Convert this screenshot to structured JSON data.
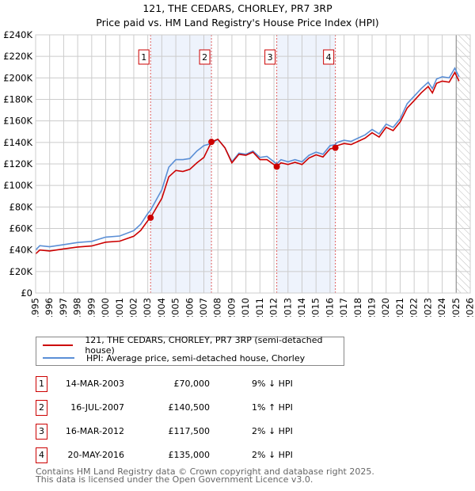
{
  "title": "121, THE CEDARS, CHORLEY, PR7 3RP",
  "subtitle": "Price paid vs. HM Land Registry's House Price Index (HPI)",
  "chart_data": {
    "type": "line",
    "title": "121, THE CEDARS, CHORLEY, PR7 3RP — Price paid vs. HM Land Registry's House Price Index (HPI)",
    "xlim": [
      1995,
      2026
    ],
    "ylim": [
      0,
      240000
    ],
    "x_ticks": [
      "1995",
      "1996",
      "1997",
      "1998",
      "1999",
      "2000",
      "2001",
      "2002",
      "2003",
      "2004",
      "2005",
      "2006",
      "2007",
      "2008",
      "2009",
      "2010",
      "2011",
      "2012",
      "2013",
      "2014",
      "2015",
      "2016",
      "2017",
      "2018",
      "2019",
      "2020",
      "2021",
      "2022",
      "2023",
      "2024",
      "2025",
      "2026"
    ],
    "y_ticks": [
      {
        "v": 0,
        "label": "£0"
      },
      {
        "v": 20000,
        "label": "£20K"
      },
      {
        "v": 40000,
        "label": "£40K"
      },
      {
        "v": 60000,
        "label": "£60K"
      },
      {
        "v": 80000,
        "label": "£80K"
      },
      {
        "v": 100000,
        "label": "£100K"
      },
      {
        "v": 120000,
        "label": "£120K"
      },
      {
        "v": 140000,
        "label": "£140K"
      },
      {
        "v": 160000,
        "label": "£160K"
      },
      {
        "v": 180000,
        "label": "£180K"
      },
      {
        "v": 200000,
        "label": "£200K"
      },
      {
        "v": 220000,
        "label": "£220K"
      },
      {
        "v": 240000,
        "label": "£240K"
      }
    ],
    "grid": true,
    "forecast_from": 2025,
    "series": [
      {
        "name": "121, THE CEDARS, CHORLEY, PR7 3RP (semi-detached house)",
        "color": "#cc0000",
        "x": [
          1995,
          1995.3,
          1996,
          1997,
          1998,
          1999,
          2000,
          2001,
          2002,
          2002.5,
          2003,
          2003.2,
          2004,
          2004.5,
          2005,
          2005.5,
          2006,
          2006.5,
          2007,
          2007.54,
          2008,
          2008.5,
          2009,
          2009.5,
          2010,
          2010.5,
          2011,
          2011.5,
          2012.2,
          2012.5,
          2013,
          2013.5,
          2014,
          2014.5,
          2015,
          2015.5,
          2016,
          2016.38,
          2016.5,
          2017,
          2017.5,
          2018,
          2018.5,
          2019,
          2019.5,
          2020,
          2020.5,
          2021,
          2021.5,
          2022,
          2022.5,
          2023,
          2023.3,
          2023.6,
          2024,
          2024.5,
          2024.9,
          2025.2
        ],
        "y": [
          36400,
          40000,
          39100,
          41000,
          42800,
          43700,
          47300,
          48200,
          52800,
          58200,
          67300,
          70000,
          88000,
          108000,
          114000,
          113000,
          115000,
          121000,
          126000,
          140500,
          143000,
          135000,
          121000,
          129000,
          128000,
          131000,
          124000,
          124000,
          117500,
          121000,
          119500,
          121500,
          119500,
          125500,
          128500,
          126500,
          134000,
          135000,
          137000,
          139000,
          138000,
          141000,
          144000,
          149000,
          145000,
          154000,
          151000,
          159000,
          172000,
          179000,
          186000,
          192000,
          186000,
          195000,
          197000,
          196000,
          205000,
          197000
        ]
      },
      {
        "name": "HPI: Average price, semi-detached house, Chorley",
        "color": "#5b8fd6",
        "x": [
          1995,
          1995.3,
          1996,
          1997,
          1998,
          1999,
          2000,
          2001,
          2002,
          2002.5,
          2003,
          2003.2,
          2004,
          2004.5,
          2005,
          2005.5,
          2006,
          2006.5,
          2007,
          2007.54,
          2008,
          2008.5,
          2009,
          2009.5,
          2010,
          2010.5,
          2011,
          2011.5,
          2012.2,
          2012.5,
          2013,
          2013.5,
          2014,
          2014.5,
          2015,
          2015.5,
          2016,
          2016.38,
          2016.5,
          2017,
          2017.5,
          2018,
          2018.5,
          2019,
          2019.5,
          2020,
          2020.5,
          2021,
          2021.5,
          2022,
          2022.5,
          2023,
          2023.3,
          2023.6,
          2024,
          2024.5,
          2024.9,
          2025.2
        ],
        "y": [
          40000,
          44000,
          43000,
          45000,
          47000,
          48000,
          52000,
          53000,
          58000,
          64000,
          74000,
          77000,
          96000,
          117000,
          124000,
          124000,
          125000,
          132000,
          137000,
          139000,
          143000,
          135000,
          122000,
          130000,
          129000,
          132000,
          126000,
          127000,
          120000,
          124000,
          122000,
          124000,
          122000,
          128000,
          131000,
          129000,
          137000,
          138000,
          140000,
          142000,
          141000,
          144000,
          147000,
          152000,
          148000,
          157000,
          154000,
          162000,
          176000,
          183000,
          190000,
          196000,
          190000,
          199000,
          201000,
          200000,
          209000,
          201000
        ]
      }
    ],
    "sales": [
      {
        "n": "1",
        "x": 2003.2,
        "y": 70000
      },
      {
        "n": "2",
        "x": 2007.54,
        "y": 140500
      },
      {
        "n": "3",
        "x": 2012.2,
        "y": 117500
      },
      {
        "n": "4",
        "x": 2016.38,
        "y": 135000
      }
    ]
  },
  "legend": {
    "property": "121, THE CEDARS, CHORLEY, PR7 3RP (semi-detached house)",
    "hpi": "HPI: Average price, semi-detached house, Chorley"
  },
  "transactions": [
    {
      "n": "1",
      "date": "14-MAR-2003",
      "price": "£70,000",
      "hpi": "9% ↓ HPI"
    },
    {
      "n": "2",
      "date": "16-JUL-2007",
      "price": "£140,500",
      "hpi": "1% ↑ HPI"
    },
    {
      "n": "3",
      "date": "16-MAR-2012",
      "price": "£117,500",
      "hpi": "2% ↓ HPI"
    },
    {
      "n": "4",
      "date": "20-MAY-2016",
      "price": "£135,000",
      "hpi": "2% ↓ HPI"
    }
  ],
  "footer": {
    "line1": "Contains HM Land Registry data © Crown copyright and database right 2025.",
    "line2": "This data is licensed under the Open Government Licence v3.0."
  }
}
